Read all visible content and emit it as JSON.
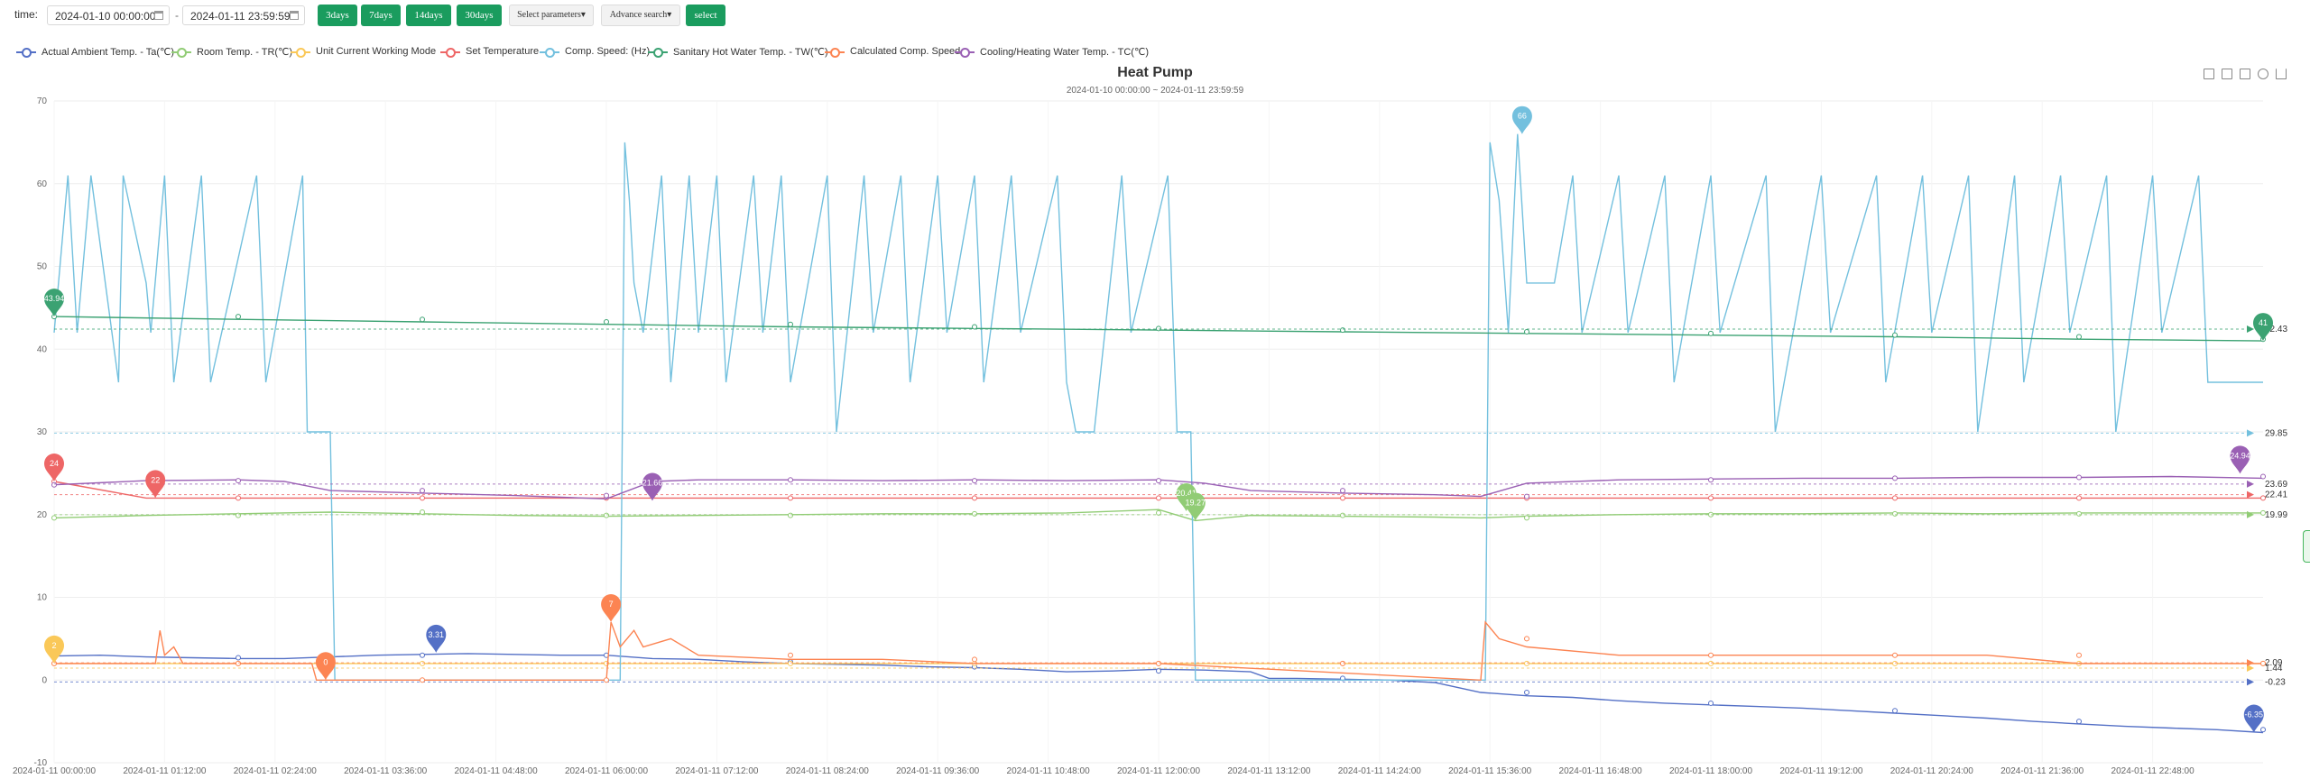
{
  "toolbar": {
    "time_label": "time:",
    "start_value": "2024-01-10 00:00:00",
    "separator": "-",
    "end_value": "2024-01-11 23:59:59",
    "btn_3days": "3days",
    "btn_7days": "7days",
    "btn_14days": "14days",
    "btn_30days": "30days",
    "select_params": "Select parameters",
    "advance_search": "Advance search",
    "select_btn": "select"
  },
  "colors": {
    "ambient": "#5470c6",
    "room": "#91cc75",
    "mode": "#fac858",
    "set_temp": "#ee6666",
    "comp_speed": "#73c0de",
    "sanitary": "#3ba272",
    "calc_speed": "#fc8452",
    "cooling": "#9a60b4"
  },
  "chart_data": {
    "type": "line",
    "title": "Heat Pump",
    "subtitle": "2024-01-10 00:00:00 ~ 2024-01-11 23:59:59",
    "ylim": [
      -10,
      70
    ],
    "y_ticks": [
      "-10",
      "0",
      "10",
      "20",
      "30",
      "40",
      "50",
      "60",
      "70"
    ],
    "x_ticks": [
      "2024-01-11 00:00:00",
      "2024-01-11 01:12:00",
      "2024-01-11 02:24:00",
      "2024-01-11 03:36:00",
      "2024-01-11 04:48:00",
      "2024-01-11 06:00:00",
      "2024-01-11 07:12:00",
      "2024-01-11 08:24:00",
      "2024-01-11 09:36:00",
      "2024-01-11 10:48:00",
      "2024-01-11 12:00:00",
      "2024-01-11 13:12:00",
      "2024-01-11 14:24:00",
      "2024-01-11 15:36:00",
      "2024-01-11 16:48:00",
      "2024-01-11 18:00:00",
      "2024-01-11 19:12:00",
      "2024-01-11 20:24:00",
      "2024-01-11 21:36:00",
      "2024-01-11 22:48:00"
    ],
    "x_range_hours": [
      0,
      24
    ],
    "legend_placement": "top-left",
    "series": [
      {
        "key": "ambient",
        "name": "Actual Ambient Temp. - Ta(℃)",
        "x": [
          0,
          0.5,
          1,
          1.5,
          2,
          2.5,
          3,
          3.5,
          4,
          4.5,
          5,
          5.5,
          6,
          6.5,
          7,
          7.5,
          8,
          8.5,
          9,
          9.5,
          10,
          10.5,
          11,
          11.5,
          12,
          12.5,
          13,
          13.2,
          13.5,
          14,
          14.5,
          15,
          15.5,
          16,
          16.5,
          17,
          17.5,
          18,
          18.5,
          19,
          19.5,
          20,
          20.5,
          21,
          21.5,
          22,
          22.5,
          23,
          23.5,
          24
        ],
        "y": [
          2.9,
          3.0,
          2.8,
          2.7,
          2.6,
          2.6,
          2.8,
          3.0,
          3.1,
          3.2,
          3.1,
          3.0,
          3.0,
          2.6,
          2.5,
          2.2,
          2.0,
          1.9,
          1.8,
          1.6,
          1.5,
          1.3,
          1.0,
          1.1,
          1.3,
          1.2,
          1.0,
          0.2,
          0.2,
          0.1,
          0.0,
          -0.3,
          -1.5,
          -1.9,
          -2.1,
          -2.5,
          -2.8,
          -3.0,
          -3.2,
          -3.4,
          -3.7,
          -4.0,
          -4.3,
          -4.6,
          -5.0,
          -5.3,
          -5.6,
          -5.8,
          -6.0,
          -6.35
        ],
        "markers": {
          "max": "3.31",
          "min": "-6.35"
        },
        "avg": -0.23
      },
      {
        "key": "room",
        "name": "Room Temp. - TR(℃)",
        "x": [
          0,
          1,
          2,
          3,
          4,
          5,
          6,
          7,
          8,
          9,
          10,
          11,
          12,
          12.4,
          13,
          14,
          15,
          15.5,
          16,
          17,
          18,
          19,
          20,
          21,
          22,
          23,
          24
        ],
        "y": [
          19.6,
          19.9,
          20.1,
          20.3,
          20.1,
          19.9,
          19.8,
          19.9,
          20.0,
          20.1,
          20.1,
          20.2,
          20.6,
          19.27,
          19.9,
          19.8,
          19.7,
          19.6,
          19.8,
          20.0,
          20.1,
          20.1,
          20.2,
          20.1,
          20.2,
          20.2,
          20.2
        ],
        "markers": {
          "max": "20.41",
          "min": "19.27"
        },
        "avg": 19.99
      },
      {
        "key": "mode",
        "name": "Unit Current Working Mode",
        "x": [
          0,
          24
        ],
        "y": [
          2,
          2
        ],
        "markers": {
          "max": "2",
          "min": ""
        },
        "avg": 1.44
      },
      {
        "key": "set_temp",
        "name": "Set Temperature",
        "x": [
          0,
          1,
          2,
          5,
          6,
          10,
          15,
          15.5,
          20,
          24
        ],
        "y": [
          24,
          22,
          22,
          22,
          22,
          22,
          22,
          22,
          22,
          22
        ],
        "markers": {
          "max": "24",
          "min": "22"
        },
        "avg": 22.41
      },
      {
        "key": "comp_speed",
        "name": "Comp. Speed: (Hz)",
        "x": [
          0,
          0.15,
          0.25,
          0.4,
          0.7,
          0.75,
          1.0,
          1.05,
          1.2,
          1.3,
          1.6,
          1.7,
          2.2,
          2.3,
          2.7,
          2.75,
          2.8,
          3.0,
          3.05,
          6.15,
          6.2,
          6.25,
          6.3,
          6.4,
          6.6,
          6.7,
          6.9,
          7.0,
          7.2,
          7.3,
          7.6,
          7.7,
          7.9,
          8.0,
          8.4,
          8.5,
          8.8,
          8.9,
          9.2,
          9.3,
          9.6,
          9.7,
          10.0,
          10.1,
          10.4,
          10.5,
          10.9,
          11.0,
          11.1,
          11.3,
          11.6,
          11.7,
          12.1,
          12.2,
          12.35,
          12.4,
          15.55,
          15.6,
          15.7,
          15.8,
          15.9,
          16.0,
          16.1,
          16.3,
          16.5,
          16.6,
          17.0,
          17.1,
          17.5,
          17.6,
          18.0,
          18.1,
          18.6,
          18.7,
          19.2,
          19.3,
          19.8,
          19.9,
          20.3,
          20.4,
          20.8,
          20.9,
          21.3,
          21.4,
          21.8,
          21.9,
          22.3,
          22.4,
          22.8,
          22.9,
          23.3,
          23.4,
          24
        ],
        "y": [
          42,
          61,
          42,
          61,
          36,
          61,
          48,
          42,
          61,
          36,
          61,
          36,
          61,
          36,
          61,
          30,
          30,
          30,
          0,
          0,
          65,
          58,
          48,
          42,
          61,
          36,
          61,
          42,
          61,
          36,
          61,
          42,
          61,
          36,
          61,
          30,
          61,
          42,
          61,
          36,
          61,
          42,
          61,
          36,
          61,
          42,
          61,
          36,
          30,
          30,
          61,
          42,
          61,
          30,
          30,
          0,
          0,
          65,
          58,
          42,
          66,
          48,
          48,
          48,
          61,
          42,
          61,
          42,
          61,
          36,
          61,
          42,
          61,
          30,
          61,
          42,
          61,
          36,
          61,
          42,
          61,
          30,
          61,
          36,
          61,
          42,
          61,
          30,
          61,
          42,
          61,
          36,
          36
        ],
        "markers": {
          "max": "66",
          "min": ""
        },
        "avg": 29.85
      },
      {
        "key": "sanitary",
        "name": "Sanitary Hot Water Temp. - TW(℃)",
        "x": [
          0,
          2,
          4,
          6,
          8,
          10,
          12,
          14,
          16,
          18,
          20,
          22,
          24
        ],
        "y": [
          43.94,
          43.6,
          43.3,
          43.0,
          42.7,
          42.5,
          42.3,
          42.1,
          41.9,
          41.7,
          41.5,
          41.2,
          41
        ],
        "markers": {
          "max": "43.94",
          "min": "41"
        },
        "avg": 42.43
      },
      {
        "key": "calc_speed",
        "name": "Calculated Comp. Speed",
        "x": [
          0,
          1.1,
          1.15,
          1.2,
          1.3,
          1.4,
          2.8,
          2.85,
          6.0,
          6.05,
          6.15,
          6.3,
          6.4,
          6.7,
          7.0,
          8.0,
          9.0,
          10.0,
          10.5,
          12.0,
          15.5,
          15.55,
          15.7,
          16.0,
          17.0,
          18.0,
          19.0,
          20.0,
          21.0,
          22.0,
          23.0,
          24
        ],
        "y": [
          2,
          2,
          6,
          3,
          4,
          2,
          2,
          0,
          0,
          7,
          4,
          6,
          4,
          5,
          3,
          2.5,
          2.5,
          2,
          2,
          2,
          0,
          7,
          5,
          4,
          3,
          3,
          3,
          3,
          3,
          2,
          2,
          2
        ],
        "markers": {
          "max": "7",
          "min": "0"
        },
        "avg": 2.09
      },
      {
        "key": "cooling",
        "name": "Cooling/Heating Water Temp. - TC(℃)",
        "x": [
          0,
          1,
          2,
          2.5,
          3,
          4,
          5,
          6,
          6.5,
          7,
          8,
          9,
          10,
          11,
          12,
          12.5,
          13,
          14,
          15,
          15.5,
          16,
          17,
          18,
          19,
          20,
          21,
          22,
          23,
          24
        ],
        "y": [
          23.6,
          24.1,
          24.2,
          24.0,
          22.9,
          22.6,
          22.3,
          21.9,
          24.0,
          24.2,
          24.2,
          24.1,
          24.2,
          24.1,
          24.2,
          23.8,
          22.9,
          22.6,
          22.4,
          22.2,
          23.8,
          24.2,
          24.3,
          24.4,
          24.4,
          24.5,
          24.5,
          24.6,
          24.4
        ],
        "markers": {
          "max": "24.94",
          "min": "21.66"
        },
        "avg": 23.69
      }
    ]
  }
}
